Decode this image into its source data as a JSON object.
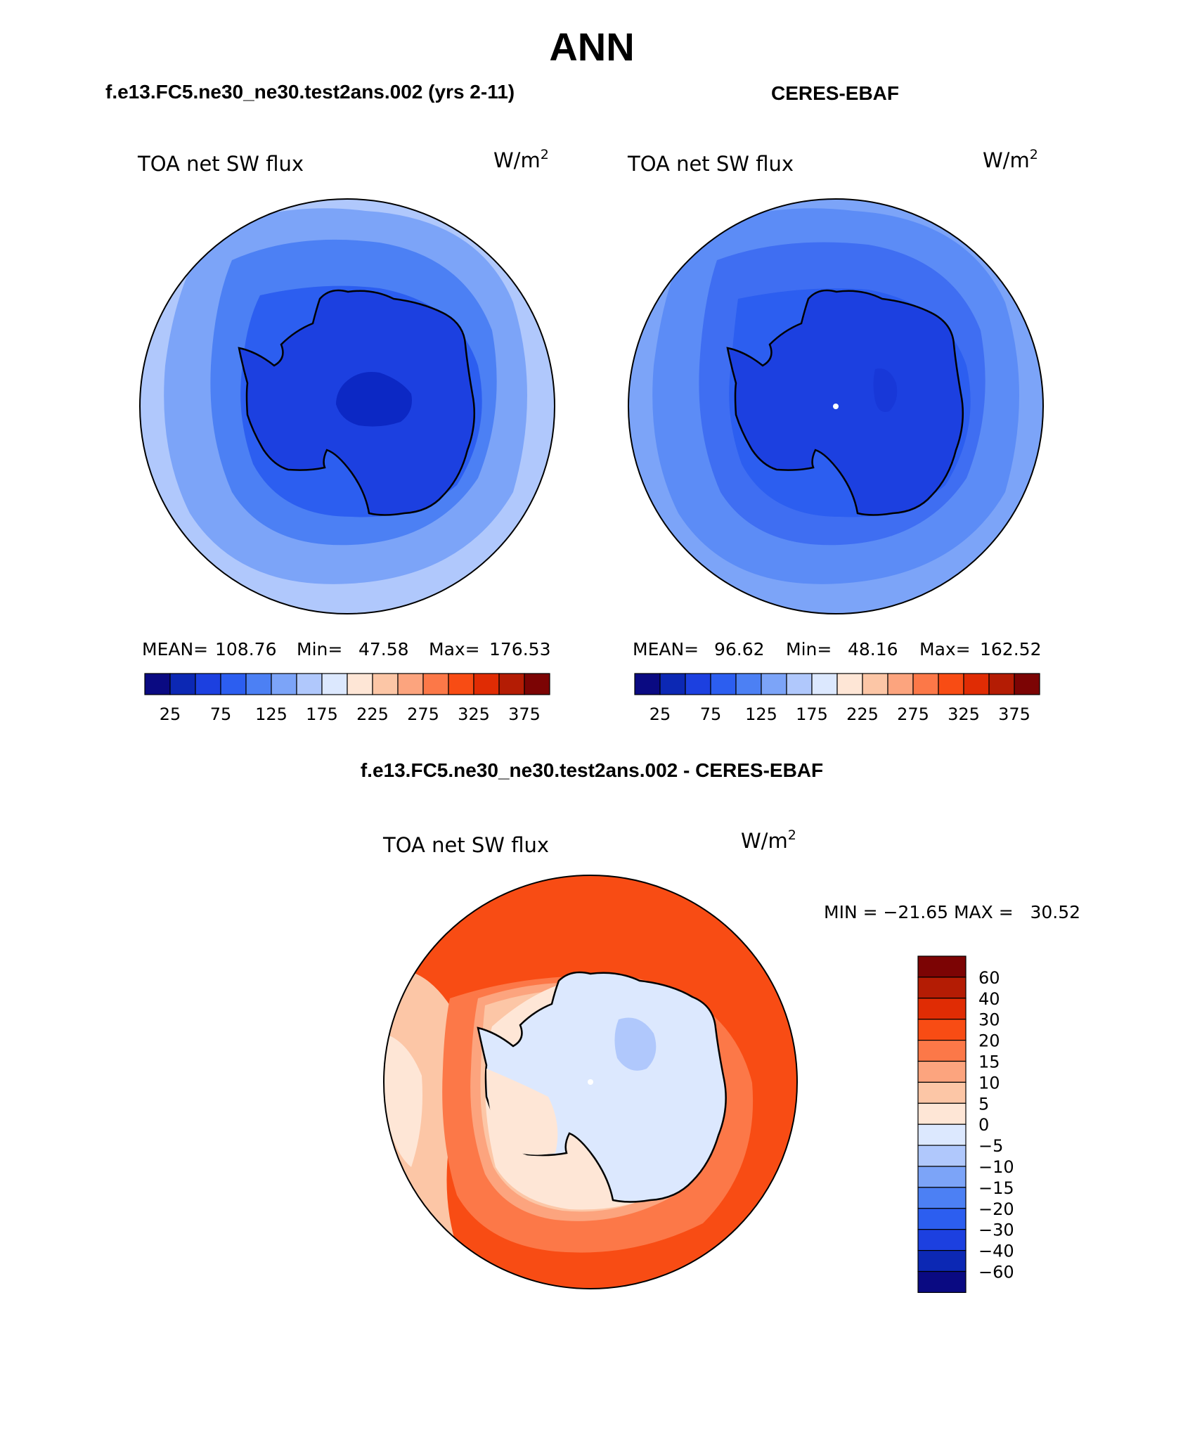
{
  "page_title": "ANN",
  "panels": [
    {
      "case_title": "f.e13.FC5.ne30_ne30.test2ans.002 (yrs 2-11)",
      "variable": "TOA net SW flux",
      "units": "W/m",
      "units_power": "2",
      "stats": {
        "mean_label": "MEAN=",
        "mean": "108.76",
        "min_label": "Min=",
        "min": "47.58",
        "max_label": "Max=",
        "max": "176.53"
      },
      "field": {
        "ocean_outer": "#b0c8fc",
        "ocean_mid": "#7ca4f8",
        "ocean_inner": "#4c80f4",
        "ice_edge": "#2c5ef0",
        "continent": "#1c40e0",
        "plateau": "#0c28c4"
      }
    },
    {
      "case_title": "CERES-EBAF",
      "variable": "TOA net SW flux",
      "units": "W/m",
      "units_power": "2",
      "stats": {
        "mean_label": "MEAN=",
        "mean": "96.62",
        "min_label": "Min=",
        "min": "48.16",
        "max_label": "Max=",
        "max": "162.52"
      },
      "field": {
        "ocean_outer": "#7ca4f8",
        "ocean_mid": "#5c8cf6",
        "ocean_inner": "#3f6ef2",
        "ice_edge": "#2c5ef0",
        "continent": "#1c40e0",
        "plateau": "#1838d8"
      }
    }
  ],
  "colorbar": {
    "colors": [
      "#0a0a82",
      "#0c28b4",
      "#1c40e0",
      "#2c5ef0",
      "#4c80f4",
      "#7ca4f8",
      "#b0c8fc",
      "#dce8fe",
      "#fee6d6",
      "#fcc6a6",
      "#fca47e",
      "#fc7848",
      "#f84c14",
      "#e02c04",
      "#b41c04",
      "#7c0404"
    ],
    "tick_labels": [
      "25",
      "75",
      "125",
      "175",
      "225",
      "275",
      "325",
      "375"
    ]
  },
  "diff_panel": {
    "title": "f.e13.FC5.ne30_ne30.test2ans.002 - CERES-EBAF",
    "variable": "TOA net SW flux",
    "units": "W/m",
    "units_power": "2",
    "minmax": "MIN = −21.65 MAX =   30.52",
    "field": {
      "ocean_north": "#f84c14",
      "ocean_band": "#fc7848",
      "ocean_light": "#fca47e",
      "ocean_pale": "#fcc6a6",
      "coast_ring": "#fee6d6",
      "continent": "#dce8fe",
      "plateau_patch": "#b0c8fc",
      "west_pale": "#fee6d6"
    },
    "legend_colors": [
      "#7c0404",
      "#b41c04",
      "#e02c04",
      "#f84c14",
      "#fc7848",
      "#fca47e",
      "#fcc6a6",
      "#fee6d6",
      "#dce8fe",
      "#b0c8fc",
      "#7ca4f8",
      "#4c80f4",
      "#2c5ef0",
      "#1c40e0",
      "#0c28b4",
      "#0a0a82"
    ],
    "legend_labels": [
      "60",
      "40",
      "30",
      "20",
      "15",
      "10",
      "5",
      "0",
      "−5",
      "−10",
      "−15",
      "−20",
      "−30",
      "−40",
      "−60"
    ]
  }
}
